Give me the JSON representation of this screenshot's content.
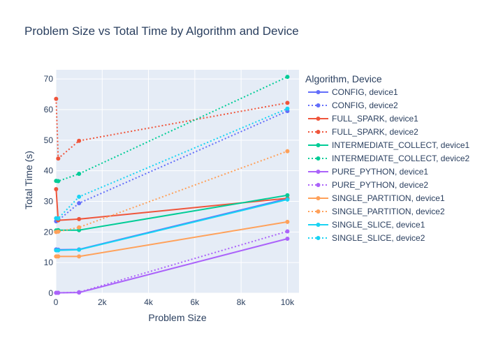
{
  "chart_data": {
    "type": "line",
    "title": "Problem Size vs Total Time by Algorithm and Device",
    "xlabel": "Problem Size",
    "ylabel": "Total Time (s)",
    "xlim": [
      0,
      10500
    ],
    "ylim": [
      0,
      73
    ],
    "x_ticks": [
      0,
      2000,
      4000,
      6000,
      8000,
      10000
    ],
    "x_tick_labels": [
      "0",
      "2k",
      "4k",
      "6k",
      "8k",
      "10k"
    ],
    "y_ticks": [
      0,
      10,
      20,
      30,
      40,
      50,
      60,
      70
    ],
    "y_tick_labels": [
      "0",
      "10",
      "20",
      "30",
      "40",
      "50",
      "60",
      "70"
    ],
    "grid": true,
    "plot_background": "#e5ecf6",
    "legend_title": "Algorithm, Device",
    "legend_position": "right",
    "series": [
      {
        "name": "CONFIG, device1",
        "color": "#636efa",
        "dash": "solid",
        "points": [
          [
            10,
            14.3
          ],
          [
            100,
            14.2
          ],
          [
            1000,
            14.3
          ],
          [
            10000,
            30.9
          ]
        ]
      },
      {
        "name": "CONFIG, device2",
        "color": "#636efa",
        "dash": "dot",
        "points": [
          [
            10,
            23.5
          ],
          [
            100,
            23.8
          ],
          [
            1000,
            29.4
          ],
          [
            10000,
            59.5
          ]
        ]
      },
      {
        "name": "FULL_SPARK, device1",
        "color": "#ef553b",
        "dash": "solid",
        "points": [
          [
            10,
            34.0
          ],
          [
            100,
            23.8
          ],
          [
            1000,
            24.2
          ],
          [
            10000,
            31.0
          ]
        ]
      },
      {
        "name": "FULL_SPARK, device2",
        "color": "#ef553b",
        "dash": "dot",
        "points": [
          [
            10,
            63.5
          ],
          [
            100,
            44.0
          ],
          [
            1000,
            49.8
          ],
          [
            10000,
            62.2
          ]
        ]
      },
      {
        "name": "INTERMEDIATE_COLLECT, device1",
        "color": "#00cc96",
        "dash": "solid",
        "points": [
          [
            10,
            20.5
          ],
          [
            100,
            20.6
          ],
          [
            1000,
            20.6
          ],
          [
            10000,
            32.0
          ]
        ]
      },
      {
        "name": "INTERMEDIATE_COLLECT, device2",
        "color": "#00cc96",
        "dash": "dot",
        "points": [
          [
            10,
            36.7
          ],
          [
            100,
            36.6
          ],
          [
            1000,
            39.0
          ],
          [
            10000,
            70.7
          ]
        ]
      },
      {
        "name": "PURE_PYTHON, device1",
        "color": "#ab63fa",
        "dash": "solid",
        "points": [
          [
            10,
            0.1
          ],
          [
            100,
            0.1
          ],
          [
            1000,
            0.2
          ],
          [
            10000,
            17.8
          ]
        ]
      },
      {
        "name": "PURE_PYTHON, device2",
        "color": "#ab63fa",
        "dash": "dot",
        "points": [
          [
            10,
            0.1
          ],
          [
            100,
            0.1
          ],
          [
            1000,
            0.3
          ],
          [
            10000,
            20.2
          ]
        ]
      },
      {
        "name": "SINGLE_PARTITION, device1",
        "color": "#ffa15a",
        "dash": "solid",
        "points": [
          [
            10,
            12.0
          ],
          [
            100,
            12.0
          ],
          [
            1000,
            12.0
          ],
          [
            10000,
            23.3
          ]
        ]
      },
      {
        "name": "SINGLE_PARTITION, device2",
        "color": "#ffa15a",
        "dash": "dot",
        "points": [
          [
            10,
            20.0
          ],
          [
            100,
            20.1
          ],
          [
            1000,
            21.5
          ],
          [
            10000,
            46.4
          ]
        ]
      },
      {
        "name": "SINGLE_SLICE, device1",
        "color": "#19d3f3",
        "dash": "solid",
        "points": [
          [
            10,
            14.0
          ],
          [
            100,
            14.0
          ],
          [
            1000,
            14.2
          ],
          [
            10000,
            30.6
          ]
        ]
      },
      {
        "name": "SINGLE_SLICE, device2",
        "color": "#19d3f3",
        "dash": "dot",
        "points": [
          [
            10,
            24.5
          ],
          [
            100,
            24.4
          ],
          [
            1000,
            31.5
          ],
          [
            10000,
            60.3
          ]
        ]
      }
    ]
  }
}
